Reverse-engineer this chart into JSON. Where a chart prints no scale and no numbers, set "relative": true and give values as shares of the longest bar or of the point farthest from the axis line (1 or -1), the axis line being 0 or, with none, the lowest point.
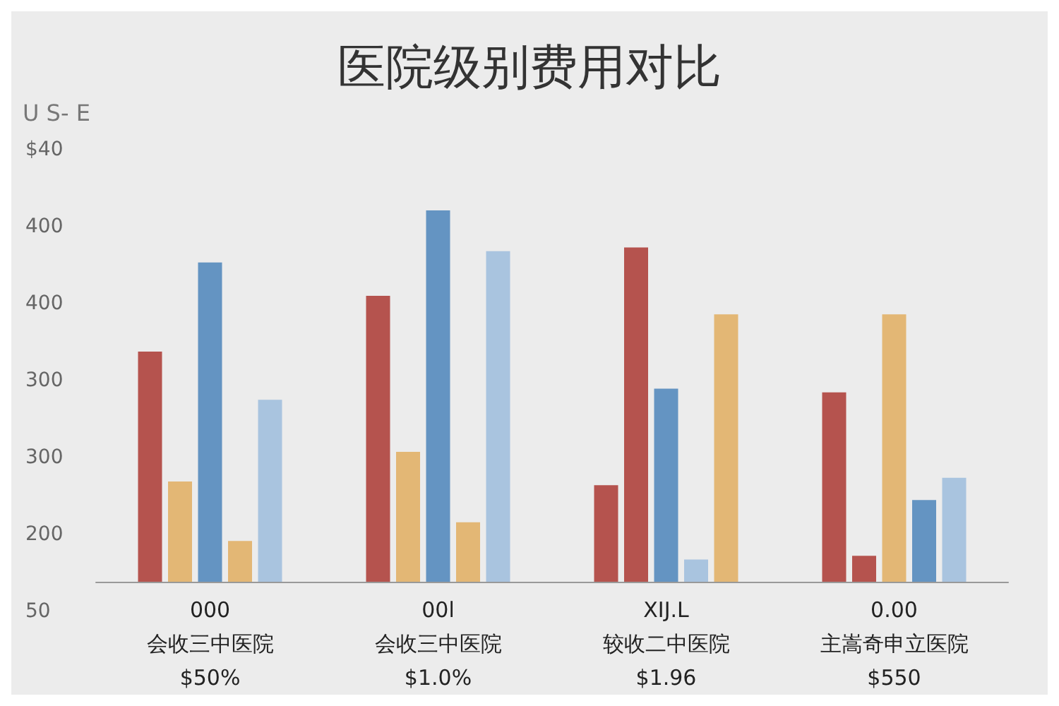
{
  "chart_data": {
    "type": "bar",
    "title": "医院级别费用对比",
    "ylabel": "U S- E",
    "categories": [
      "000\n会收三中医院\n$50%",
      "00l\n会收三中医院\n$1.0%",
      "XIJ.L\n较收二中医院\n$1.96",
      "0.00\n主嵩奇申立医院\n$550"
    ],
    "series": [
      {
        "colors": [
          "#b5534e",
          "#b5534e",
          "#b5534e",
          "#b5534e"
        ],
        "values": [
          0.62,
          0.77,
          0.26,
          0.51
        ]
      },
      {
        "colors": [
          "#e3b775",
          "#e3b775",
          "#b5534e",
          "#b5534e"
        ],
        "values": [
          0.27,
          0.35,
          0.9,
          0.07
        ]
      },
      {
        "colors": [
          "#6494c2",
          "#6494c2",
          "#6494c2",
          "#e3b775"
        ],
        "values": [
          0.86,
          1.0,
          0.52,
          0.72
        ]
      },
      {
        "colors": [
          "#e3b775",
          "#e3b775",
          "#a9c4df",
          "#6494c2"
        ],
        "values": [
          0.11,
          0.16,
          0.06,
          0.22
        ]
      },
      {
        "colors": [
          "#a9c4df",
          "#a9c4df",
          "#e3b775",
          "#a9c4df"
        ],
        "values": [
          0.49,
          0.89,
          0.72,
          0.28
        ]
      }
    ],
    "relative": true,
    "annotations": [
      "$40",
      "400",
      "400",
      "300",
      "300",
      "200",
      "50"
    ]
  }
}
